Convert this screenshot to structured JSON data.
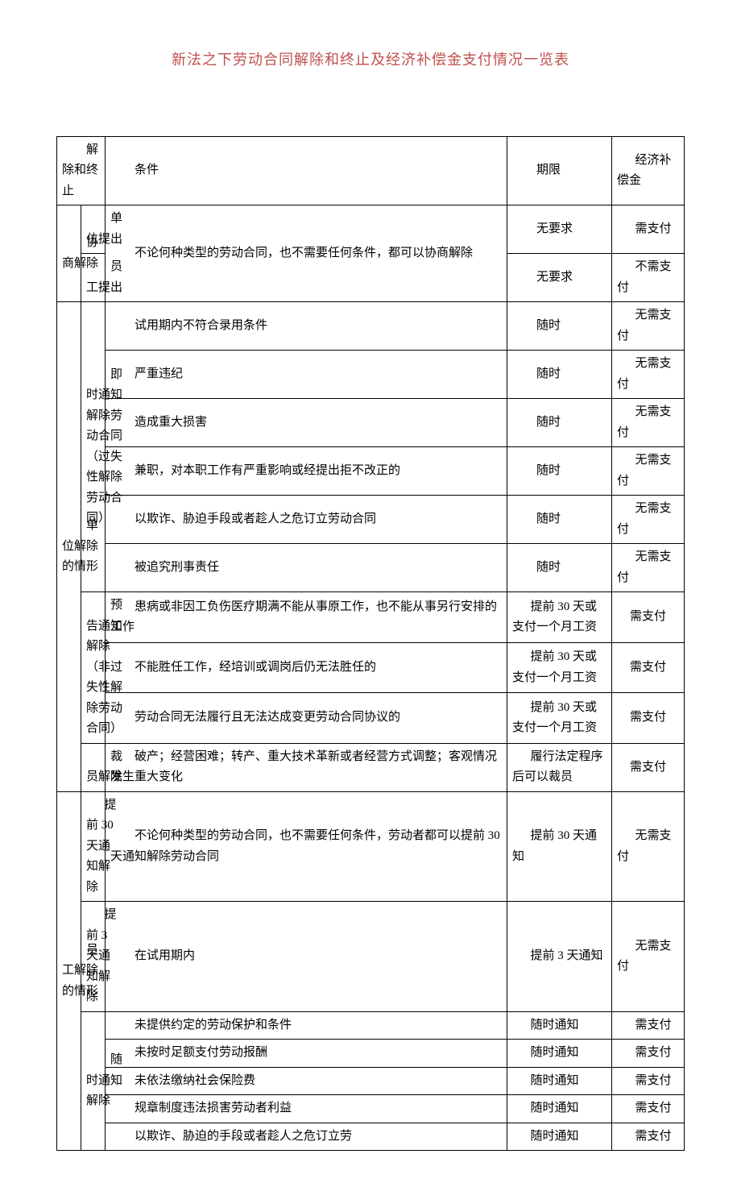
{
  "title": "新法之下劳动合同解除和终止及经济补偿金支付情况一览表",
  "headers": {
    "c1": "解除和终止",
    "c2": "条件",
    "c3": "期限",
    "c4": "经济补偿金"
  },
  "rows": {
    "xieshang": {
      "group": "协商解除",
      "sub1": "单位提出",
      "sub2": "员工提出",
      "cond": "不论何种类型的劳动合同，也不需要任何条件，都可以协商解除",
      "t1": "无要求",
      "t2": "无要求",
      "p1": "需支付",
      "p2": "不需支付"
    },
    "danwei": {
      "group": "单位解除的情形",
      "jishi": {
        "label": "即时通知解除劳动合同（过失性解除劳动合同）",
        "r1": {
          "cond": "试用期内不符合录用条件",
          "term": "随时",
          "pay": "无需支付"
        },
        "r2": {
          "cond": "严重违纪",
          "term": "随时",
          "pay": "无需支付"
        },
        "r3": {
          "cond": "造成重大损害",
          "term": "随时",
          "pay": "无需支付"
        },
        "r4": {
          "cond": "兼职，对本职工作有严重影响或经提出拒不改正的",
          "term": "随时",
          "pay": "无需支付"
        },
        "r5": {
          "cond": "以欺诈、胁迫手段或者趁人之危订立劳动合同",
          "term": "随时",
          "pay": "无需支付"
        },
        "r6": {
          "cond": "被追究刑事责任",
          "term": "随时",
          "pay": "无需支付"
        }
      },
      "yugao": {
        "label": "预告通知解除（非过失性解除劳动合同）",
        "r1": {
          "cond": "患病或非因工负伤医疗期满不能从事原工作，也不能从事另行安排的工作",
          "term": "提前 30 天或支付一个月工资",
          "pay": "需支付"
        },
        "r2": {
          "cond": "不能胜任工作，经培训或调岗后仍无法胜任的",
          "term": "提前 30 天或支付一个月工资",
          "pay": "需支付"
        },
        "r3": {
          "cond": "劳动合同无法履行且无法达成变更劳动合同协议的",
          "term": "提前 30 天或支付一个月工资",
          "pay": "需支付"
        }
      },
      "caiyuan": {
        "label": "裁员解除",
        "cond": "破产；经营困难；转产、重大技术革新或者经营方式调整；客观情况发生重大变化",
        "term": "履行法定程序后可以裁员",
        "pay": "需支付"
      }
    },
    "yuangong": {
      "group": "员工解除的情形",
      "tiqian30": {
        "label": "提前 30 天通知解除",
        "cond": "不论何种类型的劳动合同，也不需要任何条件，劳动者都可以提前 30 天通知解除劳动合同",
        "term": "提前 30 天通知",
        "pay": "无需支付"
      },
      "tiqian3": {
        "label": "提前 3 天通知解除",
        "cond": "在试用期内",
        "term": "提前 3 天通知",
        "pay": "无需支付"
      },
      "suishi": {
        "label": "随时通知解除",
        "r1": {
          "cond": "未提供约定的劳动保护和条件",
          "term": "随时通知",
          "pay": "需支付"
        },
        "r2": {
          "cond": "未按时足额支付劳动报酬",
          "term": "随时通知",
          "pay": "需支付"
        },
        "r3": {
          "cond": "未依法缴纳社会保险费",
          "term": "随时通知",
          "pay": "需支付"
        },
        "r4": {
          "cond": "规章制度违法损害劳动者利益",
          "term": "随时通知",
          "pay": "需支付"
        },
        "r5": {
          "cond": "以欺诈、胁迫的手段或者趁人之危订立劳",
          "term": "随时通知",
          "pay": "需支付"
        }
      }
    }
  }
}
